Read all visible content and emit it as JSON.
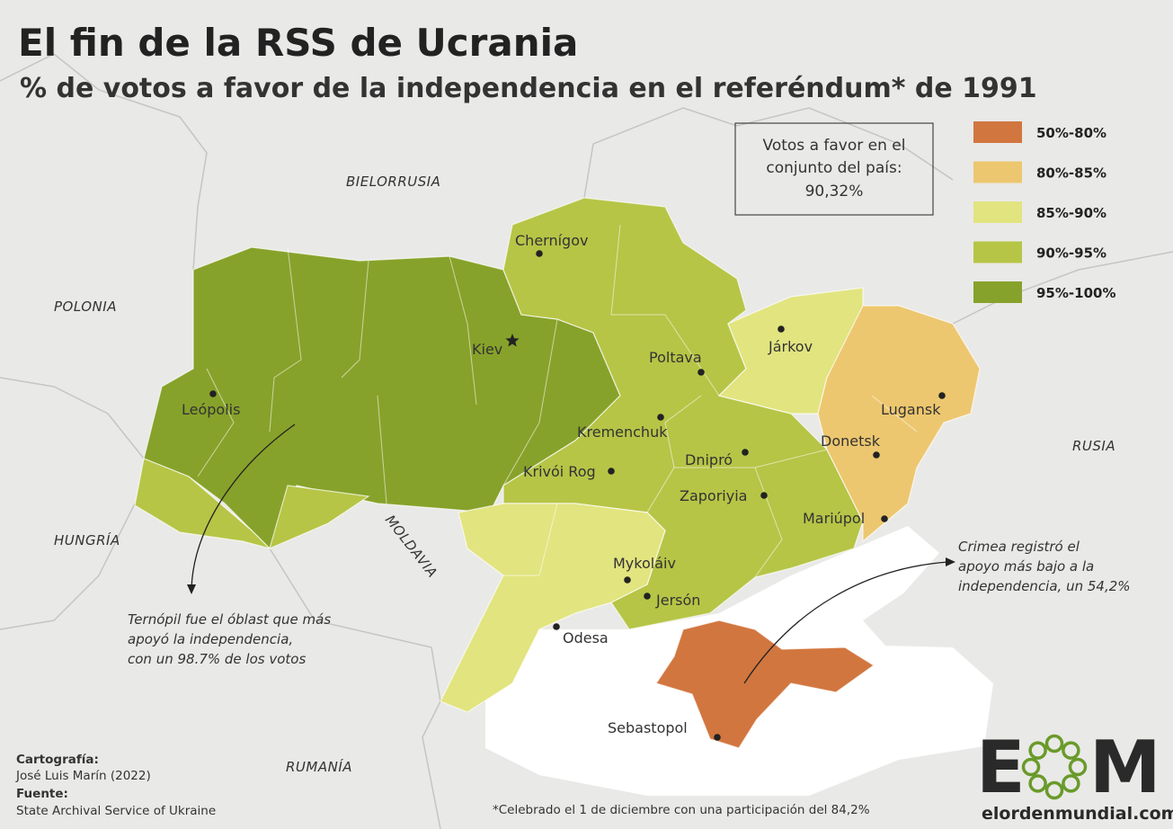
{
  "title": "El fin de la RSS de Ucrania",
  "subtitle": "% de votos a favor de la independencia en el referéndum* de 1991",
  "summary": [
    "Votos a favor en el",
    "conjunto del país:",
    "90,32%"
  ],
  "legend": [
    {
      "label": "50%-80%",
      "color": "#d2763f"
    },
    {
      "label": "80%-85%",
      "color": "#edc76f"
    },
    {
      "label": "85%-90%",
      "color": "#e2e47f"
    },
    {
      "label": "90%-95%",
      "color": "#b6c546"
    },
    {
      "label": "95%-100%",
      "color": "#87a22a"
    }
  ],
  "countries": [
    "BIELORRUSIA",
    "POLONIA",
    "HUNGRÍA",
    "MOLDAVIA",
    "RUMANÍA",
    "RUSIA"
  ],
  "cities": [
    "Chernígov",
    "Kiev",
    "Leópolis",
    "Poltava",
    "Járkov",
    "Lugansk",
    "Kremenchuk",
    "Donetsk",
    "Dnipró",
    "Krivói Rog",
    "Zaporiyia",
    "Mariúpol",
    "Mykoláiv",
    "Jersón",
    "Odesa",
    "Sebastopol"
  ],
  "annotations": {
    "ternopil": [
      "Ternópil fue el óblast que más",
      "apoyó la independencia,",
      "con un 98.7% de los votos"
    ],
    "crimea": [
      "Crimea registró el",
      "apoyo más bajo a la",
      "independencia, un 54,2%"
    ]
  },
  "credits": {
    "cartography_label": "Cartografía:",
    "cartography": "José Luis Marín (2022)",
    "source_label": "Fuente:",
    "source": "State Archival Service of Ukraine"
  },
  "footnote": "*Celebrado el 1 de diciembre con una participación del 84,2%",
  "logo": {
    "left": "E",
    "right": "M",
    "url": "elordenmundial.com"
  }
}
